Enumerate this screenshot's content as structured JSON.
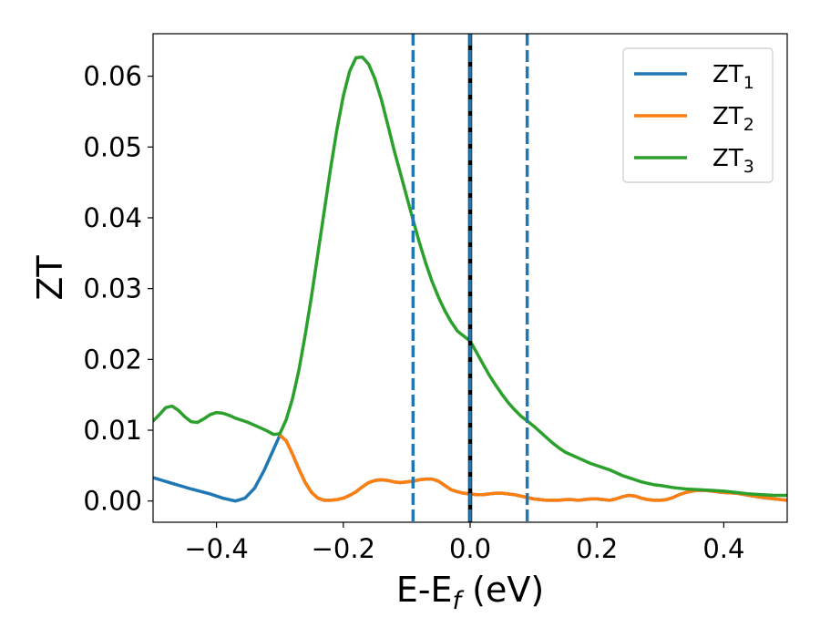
{
  "chart_data": {
    "type": "line",
    "title": "",
    "xlabel": {
      "main": "E-E",
      "sub": "f",
      "unit": " (eV)"
    },
    "ylabel": "ZT",
    "xlim": [
      -0.5,
      0.5
    ],
    "ylim": [
      -0.003,
      0.066
    ],
    "xticks": [
      -0.4,
      -0.2,
      0.0,
      0.2,
      0.4
    ],
    "xtick_labels": [
      "−0.4",
      "−0.2",
      "0.0",
      "0.2",
      "0.4"
    ],
    "yticks": [
      0.0,
      0.01,
      0.02,
      0.03,
      0.04,
      0.05,
      0.06
    ],
    "ytick_labels": [
      "0.00",
      "0.01",
      "0.02",
      "0.03",
      "0.04",
      "0.05",
      "0.06"
    ],
    "grid": false,
    "legend_position": "top-right",
    "colors": {
      "zt1": "#1f77b4",
      "zt2": "#ff7f0e",
      "zt3": "#2ca02c",
      "fermi": "#000000"
    },
    "vlines": [
      {
        "x": -0.09,
        "style": "dashed",
        "color": "#1f77b4"
      },
      {
        "x": 0.0,
        "style": "solid",
        "color": "#000000"
      },
      {
        "x": 0.0,
        "style": "dashed",
        "color": "#1f77b4"
      },
      {
        "x": 0.09,
        "style": "dashed",
        "color": "#1f77b4"
      }
    ],
    "series": [
      {
        "name": "ZT",
        "sub": "1",
        "color": "#1f77b4",
        "x": [
          -0.5,
          -0.47,
          -0.44,
          -0.41,
          -0.39,
          -0.37,
          -0.355,
          -0.34,
          -0.325,
          -0.31,
          -0.3,
          -0.29,
          -0.28,
          -0.27,
          -0.26,
          -0.25,
          -0.24,
          -0.23,
          -0.22,
          -0.21,
          -0.2,
          -0.19,
          -0.18,
          -0.17,
          -0.16,
          -0.15,
          -0.14,
          -0.13,
          -0.12,
          -0.11,
          -0.1,
          -0.09,
          -0.08,
          -0.07,
          -0.06,
          -0.05,
          -0.04,
          -0.03,
          -0.02,
          -0.01,
          0.0,
          0.01,
          0.02,
          0.03,
          0.04,
          0.05,
          0.06,
          0.07,
          0.08,
          0.09,
          0.1,
          0.11,
          0.12,
          0.13,
          0.14,
          0.15,
          0.16,
          0.17,
          0.18,
          0.19,
          0.2,
          0.21,
          0.22,
          0.23,
          0.24,
          0.25,
          0.26,
          0.27,
          0.28,
          0.29,
          0.3,
          0.31,
          0.32,
          0.33,
          0.34,
          0.35,
          0.36,
          0.37,
          0.38,
          0.39,
          0.4,
          0.42,
          0.44,
          0.46,
          0.48,
          0.5
        ],
        "y": [
          0.0033,
          0.0025,
          0.0017,
          0.001,
          0.0004,
          0.0,
          0.0004,
          0.0018,
          0.0043,
          0.0073,
          0.0093,
          0.0085,
          0.0066,
          0.0045,
          0.0026,
          0.0012,
          0.0004,
          0.0001,
          0.0001,
          0.0002,
          0.0004,
          0.0008,
          0.0013,
          0.002,
          0.0026,
          0.0029,
          0.003,
          0.0029,
          0.0027,
          0.0026,
          0.0027,
          0.0028,
          0.003,
          0.0031,
          0.0031,
          0.0028,
          0.0022,
          0.0016,
          0.0013,
          0.0011,
          0.001,
          0.0009,
          0.0009,
          0.001,
          0.0011,
          0.0011,
          0.001,
          0.0009,
          0.0007,
          0.0005,
          0.0003,
          0.0002,
          0.0001,
          0.0001,
          0.0001,
          0.0002,
          0.0002,
          0.0001,
          0.0002,
          0.0003,
          0.0003,
          0.0002,
          0.0001,
          0.0003,
          0.0006,
          0.0008,
          0.0007,
          0.0004,
          0.0002,
          0.0001,
          0.0001,
          0.0002,
          0.0005,
          0.0009,
          0.0012,
          0.0014,
          0.0015,
          0.0015,
          0.0014,
          0.0013,
          0.0012,
          0.0011,
          0.0008,
          0.0005,
          0.0003,
          0.0001
        ]
      },
      {
        "name": "ZT",
        "sub": "2",
        "color": "#ff7f0e",
        "x": [
          -0.3,
          -0.29,
          -0.28,
          -0.27,
          -0.26,
          -0.25,
          -0.24,
          -0.23,
          -0.22,
          -0.21,
          -0.2,
          -0.19,
          -0.18,
          -0.17,
          -0.16,
          -0.15,
          -0.14,
          -0.13,
          -0.12,
          -0.11,
          -0.1,
          -0.09,
          -0.08,
          -0.07,
          -0.06,
          -0.05,
          -0.04,
          -0.03,
          -0.02,
          -0.01,
          0.0,
          0.01,
          0.02,
          0.03,
          0.04,
          0.05,
          0.06,
          0.07,
          0.08,
          0.09,
          0.1,
          0.11,
          0.12,
          0.13,
          0.14,
          0.15,
          0.16,
          0.17,
          0.18,
          0.19,
          0.2,
          0.21,
          0.22,
          0.23,
          0.24,
          0.25,
          0.26,
          0.27,
          0.28,
          0.29,
          0.3,
          0.31,
          0.32,
          0.33,
          0.34,
          0.35,
          0.36,
          0.37,
          0.38,
          0.39,
          0.4,
          0.42,
          0.44,
          0.46,
          0.48,
          0.5
        ],
        "y": [
          0.0093,
          0.0085,
          0.0066,
          0.0045,
          0.0026,
          0.0012,
          0.0004,
          0.0001,
          0.0001,
          0.0002,
          0.0004,
          0.0008,
          0.0013,
          0.002,
          0.0026,
          0.0029,
          0.003,
          0.0029,
          0.0027,
          0.0026,
          0.0027,
          0.0028,
          0.003,
          0.0031,
          0.0031,
          0.0028,
          0.0022,
          0.0016,
          0.0013,
          0.0011,
          0.001,
          0.0009,
          0.0009,
          0.001,
          0.0011,
          0.0011,
          0.001,
          0.0009,
          0.0007,
          0.0005,
          0.0003,
          0.0002,
          0.0001,
          0.0001,
          0.0001,
          0.0002,
          0.0002,
          0.0001,
          0.0002,
          0.0003,
          0.0003,
          0.0002,
          0.0001,
          0.0003,
          0.0006,
          0.0008,
          0.0007,
          0.0004,
          0.0002,
          0.0001,
          0.0001,
          0.0002,
          0.0005,
          0.0009,
          0.0012,
          0.0014,
          0.0015,
          0.0015,
          0.0014,
          0.0013,
          0.0012,
          0.0011,
          0.0008,
          0.0005,
          0.0003,
          0.0001
        ]
      },
      {
        "name": "ZT",
        "sub": "3",
        "color": "#2ca02c",
        "x": [
          -0.5,
          -0.49,
          -0.48,
          -0.47,
          -0.46,
          -0.45,
          -0.44,
          -0.43,
          -0.42,
          -0.41,
          -0.4,
          -0.39,
          -0.38,
          -0.37,
          -0.36,
          -0.35,
          -0.34,
          -0.33,
          -0.32,
          -0.31,
          -0.3,
          -0.29,
          -0.28,
          -0.27,
          -0.26,
          -0.25,
          -0.24,
          -0.23,
          -0.22,
          -0.21,
          -0.2,
          -0.19,
          -0.18,
          -0.17,
          -0.16,
          -0.15,
          -0.14,
          -0.13,
          -0.12,
          -0.11,
          -0.1,
          -0.09,
          -0.08,
          -0.07,
          -0.06,
          -0.05,
          -0.04,
          -0.03,
          -0.02,
          -0.01,
          0.0,
          0.01,
          0.02,
          0.03,
          0.04,
          0.05,
          0.06,
          0.07,
          0.08,
          0.09,
          0.1,
          0.11,
          0.12,
          0.13,
          0.14,
          0.15,
          0.16,
          0.17,
          0.18,
          0.19,
          0.2,
          0.21,
          0.22,
          0.23,
          0.24,
          0.25,
          0.26,
          0.27,
          0.28,
          0.29,
          0.3,
          0.32,
          0.34,
          0.36,
          0.38,
          0.4,
          0.42,
          0.44,
          0.46,
          0.48,
          0.5
        ],
        "y": [
          0.0113,
          0.0122,
          0.0132,
          0.0134,
          0.0128,
          0.0119,
          0.0112,
          0.0111,
          0.0116,
          0.0122,
          0.0125,
          0.0124,
          0.0121,
          0.0117,
          0.0114,
          0.0111,
          0.0107,
          0.0103,
          0.0099,
          0.0094,
          0.0095,
          0.0115,
          0.0145,
          0.0185,
          0.0235,
          0.029,
          0.035,
          0.041,
          0.047,
          0.0525,
          0.0572,
          0.0607,
          0.0626,
          0.0627,
          0.0617,
          0.0596,
          0.0567,
          0.0532,
          0.0496,
          0.0463,
          0.043,
          0.0397,
          0.0365,
          0.0336,
          0.031,
          0.0288,
          0.0269,
          0.0253,
          0.024,
          0.0233,
          0.0226,
          0.021,
          0.0194,
          0.0178,
          0.0164,
          0.0151,
          0.0139,
          0.0129,
          0.012,
          0.0113,
          0.0106,
          0.0098,
          0.009,
          0.0082,
          0.0075,
          0.0069,
          0.0065,
          0.0061,
          0.0057,
          0.0053,
          0.005,
          0.0047,
          0.0044,
          0.004,
          0.0036,
          0.0033,
          0.003,
          0.0027,
          0.0025,
          0.0023,
          0.0022,
          0.0019,
          0.0017,
          0.0016,
          0.0015,
          0.0014,
          0.0012,
          0.001,
          0.0009,
          0.0008,
          0.0008
        ]
      }
    ]
  }
}
